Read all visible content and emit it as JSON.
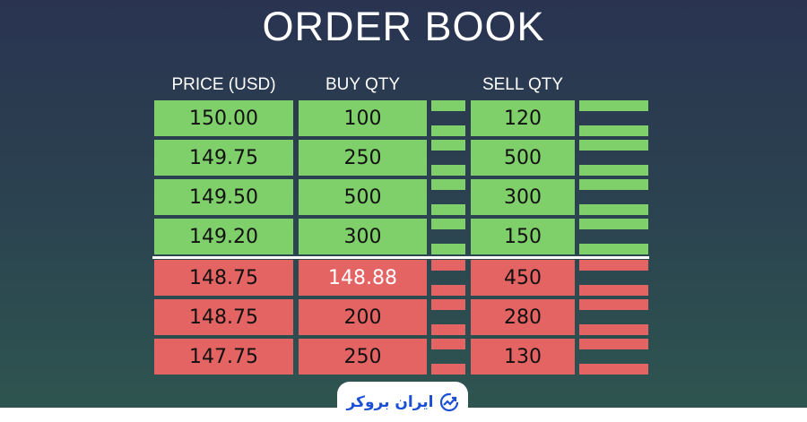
{
  "title": "ORDER BOOK",
  "headers": {
    "price": "PRICE (USD)",
    "buy": "BUY QTY",
    "sell": "SELL QTY"
  },
  "colors": {
    "bid": "#7fcf6a",
    "ask": "#e46464",
    "highlight_text": "#ffffff"
  },
  "rows": [
    {
      "price": "150.00",
      "buy": "100",
      "sell": "120",
      "side": "green"
    },
    {
      "price": "149.75",
      "buy": "250",
      "sell": "500",
      "side": "green"
    },
    {
      "price": "149.50",
      "buy": "500",
      "sell": "300",
      "side": "green"
    },
    {
      "price": "149.20",
      "buy": "300",
      "sell": "150",
      "side": "green"
    },
    {
      "price": "148.75",
      "buy": "148.88",
      "sell": "450",
      "side": "red",
      "buy_highlight": true
    },
    {
      "price": "148.75",
      "buy": "200",
      "sell": "280",
      "side": "red"
    },
    {
      "price": "147.75",
      "buy": "250",
      "sell": "130",
      "side": "red"
    }
  ],
  "logo": {
    "text": "ایران بروکر",
    "icon": "trend-chart-icon"
  }
}
